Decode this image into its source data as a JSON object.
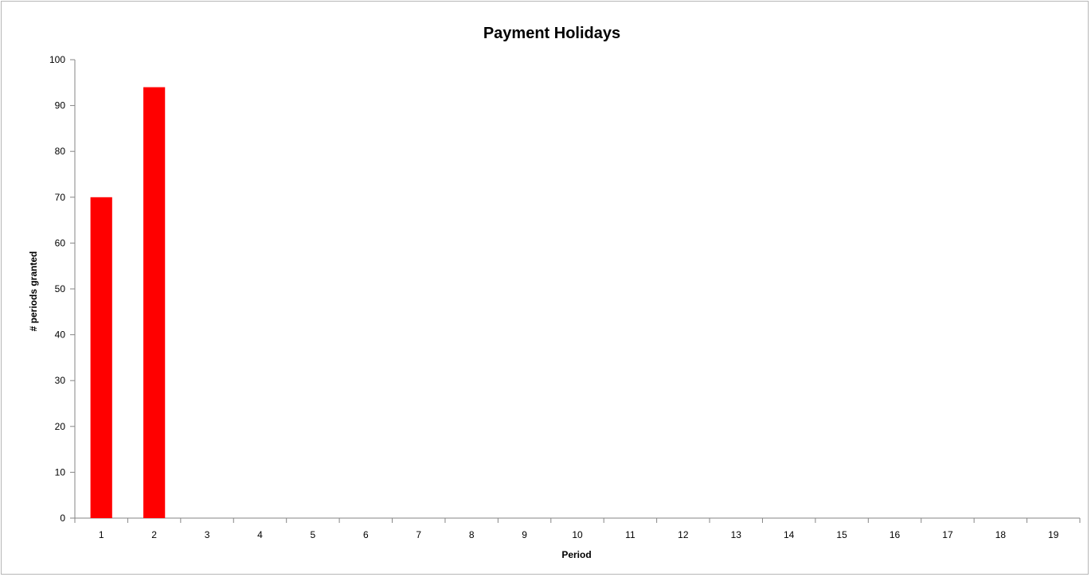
{
  "chart_data": {
    "type": "bar",
    "title": "Payment Holidays",
    "xlabel": "Period",
    "ylabel": "# periods granted",
    "categories": [
      "1",
      "2",
      "3",
      "4",
      "5",
      "6",
      "7",
      "8",
      "9",
      "10",
      "11",
      "12",
      "13",
      "14",
      "15",
      "16",
      "17",
      "18",
      "19"
    ],
    "series": [
      {
        "values": [
          70,
          94,
          0,
          0,
          0,
          0,
          0,
          0,
          0,
          0,
          0,
          0,
          0,
          0,
          0,
          0,
          0,
          0,
          0
        ]
      }
    ],
    "ylim": [
      0,
      100
    ],
    "yticks": [
      0,
      10,
      20,
      30,
      40,
      50,
      60,
      70,
      80,
      90,
      100
    ],
    "grid": false,
    "legend": "none",
    "bar_color": "#ff0000"
  }
}
